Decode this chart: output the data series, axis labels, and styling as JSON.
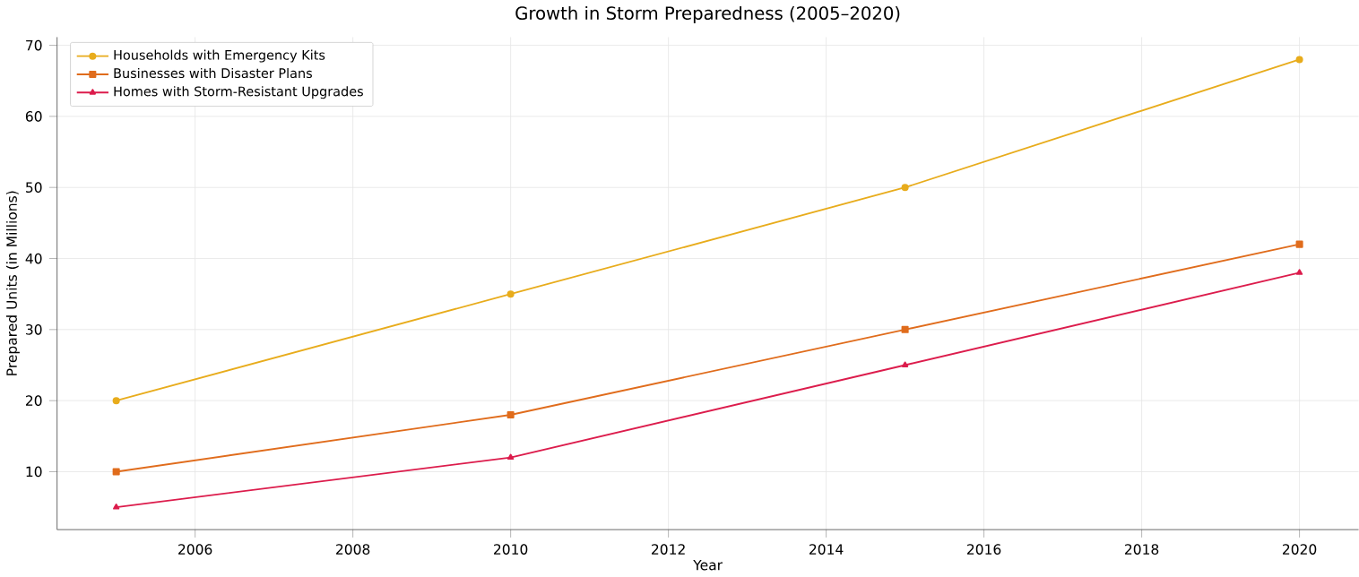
{
  "chart_data": {
    "type": "line",
    "title": "Growth in Storm Preparedness (2005–2020)",
    "xlabel": "Year",
    "ylabel": "Prepared Units (in Millions)",
    "x": [
      2005,
      2010,
      2015,
      2020
    ],
    "series": [
      {
        "name": "Households with Emergency Kits",
        "color": "#e8ac1c",
        "marker": "circle",
        "values": [
          20,
          35,
          50,
          68
        ]
      },
      {
        "name": "Businesses with Disaster Plans",
        "color": "#e06c1c",
        "marker": "square",
        "values": [
          10,
          18,
          30,
          42
        ]
      },
      {
        "name": "Homes with Storm-Resistant Upgrades",
        "color": "#dc1c4c",
        "marker": "triangle",
        "values": [
          5,
          12,
          25,
          38
        ]
      }
    ],
    "xlim": [
      2004.25,
      2020.75
    ],
    "ylim": [
      1.85,
      71.15
    ],
    "xticks": [
      2006,
      2008,
      2010,
      2012,
      2014,
      2016,
      2018,
      2020
    ],
    "yticks": [
      10,
      20,
      30,
      40,
      50,
      60,
      70
    ],
    "grid": true,
    "legend": "top left",
    "line_style": "solid"
  }
}
